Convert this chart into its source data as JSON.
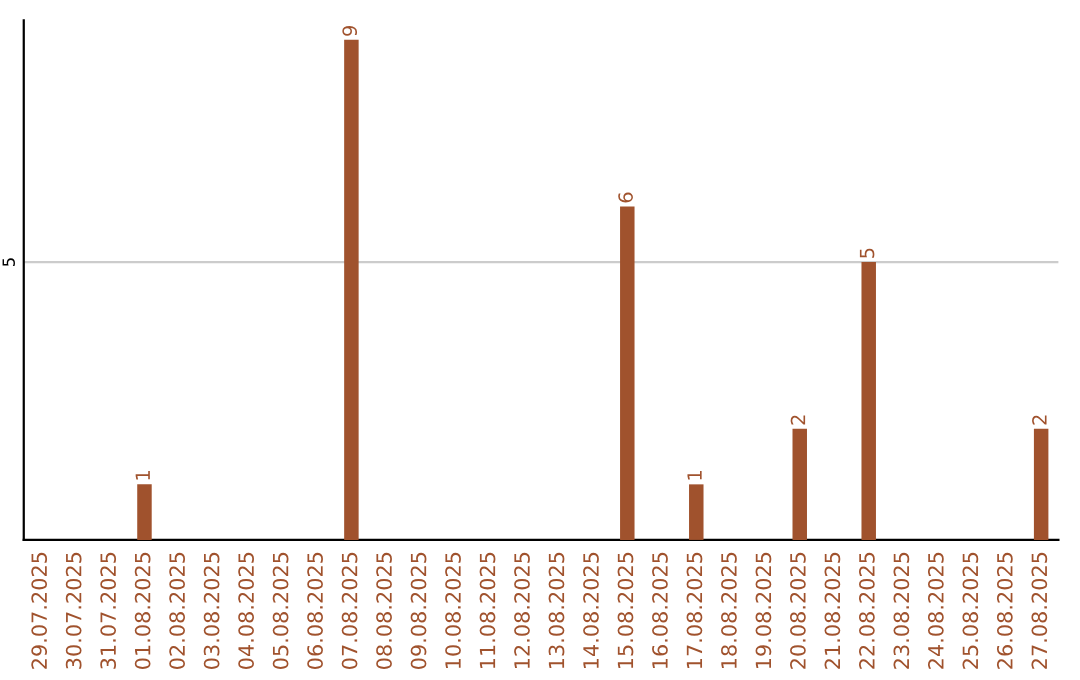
{
  "chart_data": {
    "type": "bar",
    "categories": [
      "29.07.2025",
      "30.07.2025",
      "31.07.2025",
      "01.08.2025",
      "02.08.2025",
      "03.08.2025",
      "04.08.2025",
      "05.08.2025",
      "06.08.2025",
      "07.08.2025",
      "08.08.2025",
      "09.08.2025",
      "10.08.2025",
      "11.08.2025",
      "12.08.2025",
      "13.08.2025",
      "14.08.2025",
      "15.08.2025",
      "16.08.2025",
      "17.08.2025",
      "18.08.2025",
      "19.08.2025",
      "20.08.2025",
      "21.08.2025",
      "22.08.2025",
      "23.08.2025",
      "24.08.2025",
      "25.08.2025",
      "26.08.2025",
      "27.08.2025"
    ],
    "series": [
      {
        "color": "#a0522d",
        "values": [
          0,
          0,
          0,
          1,
          0,
          0,
          0,
          0,
          0,
          9,
          0,
          0,
          0,
          0,
          0,
          0,
          0,
          6,
          0,
          1,
          0,
          0,
          2,
          0,
          5,
          0,
          0,
          0,
          0,
          2
        ],
        "value_labels": [
          null,
          null,
          null,
          "1",
          null,
          null,
          null,
          null,
          null,
          "9",
          null,
          null,
          null,
          null,
          null,
          null,
          null,
          "6",
          null,
          "1",
          null,
          null,
          "2",
          null,
          "5",
          null,
          null,
          null,
          null,
          "2"
        ]
      }
    ],
    "ylim": [
      0,
      9.35
    ],
    "yticks": [
      5
    ],
    "grid": "y"
  }
}
